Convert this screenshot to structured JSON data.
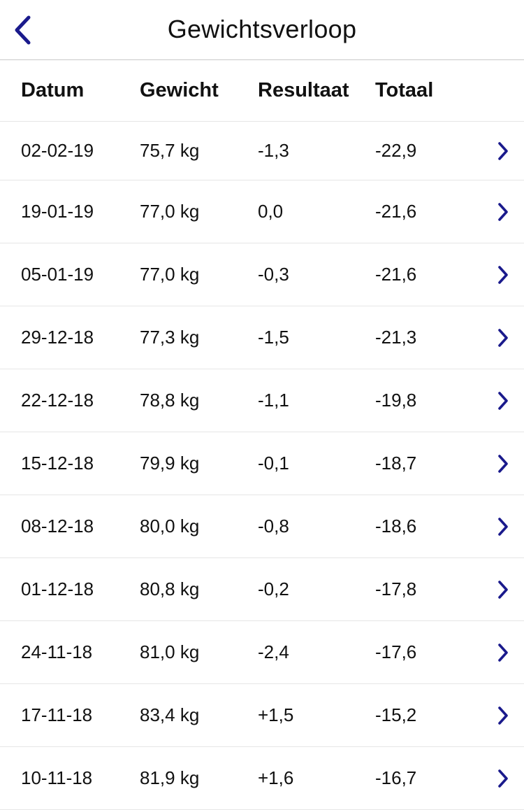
{
  "navbar": {
    "title": "Gewichtsverloop",
    "back_icon": "chevron-left-icon",
    "accent": "#1a1a8c"
  },
  "table": {
    "headers": [
      "Datum",
      "Gewicht",
      "Resultaat",
      "Totaal"
    ],
    "row_icon": "chevron-right-icon",
    "rows": [
      {
        "date": "02-02-19",
        "weight": "75,7 kg",
        "result": "-1,3",
        "total": "-22,9"
      },
      {
        "date": "19-01-19",
        "weight": "77,0 kg",
        "result": "0,0",
        "total": "-21,6"
      },
      {
        "date": "05-01-19",
        "weight": "77,0 kg",
        "result": "-0,3",
        "total": "-21,6"
      },
      {
        "date": "29-12-18",
        "weight": "77,3 kg",
        "result": "-1,5",
        "total": "-21,3"
      },
      {
        "date": "22-12-18",
        "weight": "78,8 kg",
        "result": "-1,1",
        "total": "-19,8"
      },
      {
        "date": "15-12-18",
        "weight": "79,9 kg",
        "result": "-0,1",
        "total": "-18,7"
      },
      {
        "date": "08-12-18",
        "weight": "80,0 kg",
        "result": "-0,8",
        "total": "-18,6"
      },
      {
        "date": "01-12-18",
        "weight": "80,8 kg",
        "result": "-0,2",
        "total": "-17,8"
      },
      {
        "date": "24-11-18",
        "weight": "81,0 kg",
        "result": "-2,4",
        "total": "-17,6"
      },
      {
        "date": "17-11-18",
        "weight": "83,4 kg",
        "result": "+1,5",
        "total": "-15,2"
      },
      {
        "date": "10-11-18",
        "weight": "81,9 kg",
        "result": "+1,6",
        "total": "-16,7"
      }
    ]
  }
}
